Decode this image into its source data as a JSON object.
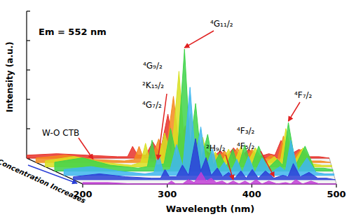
{
  "chart_data": {
    "type": "area",
    "title": "Em = 552 nm",
    "x_label": "Wavelength (nm)",
    "y_label": "Intensity (a.u.)",
    "depth_label": "Concentration Increases",
    "x": [
      200,
      230,
      260,
      290,
      300,
      305,
      310,
      318,
      325,
      332,
      340,
      346,
      352,
      358,
      365,
      371,
      378,
      385,
      392,
      398,
      405,
      412,
      420,
      430,
      440,
      446,
      452,
      460,
      470,
      480,
      490,
      500
    ],
    "series": [
      {
        "color": "#e8322a",
        "values": [
          2,
          3,
          2,
          1,
          1,
          8,
          2,
          2,
          11,
          3,
          30,
          6,
          17,
          3,
          9,
          2,
          5,
          1,
          5,
          1,
          7,
          1,
          6,
          1,
          3,
          2,
          12,
          2,
          6,
          1,
          1,
          0
        ]
      },
      {
        "color": "#f58a1f",
        "values": [
          3,
          5,
          2,
          1,
          2,
          11,
          2,
          3,
          16,
          5,
          45,
          9,
          25,
          5,
          14,
          2,
          7,
          2,
          8,
          2,
          10,
          2,
          9,
          1,
          5,
          2,
          18,
          2,
          9,
          1,
          1,
          0
        ]
      },
      {
        "color": "#d8e021",
        "values": [
          4,
          7,
          3,
          1,
          3,
          16,
          3,
          4,
          23,
          7,
          65,
          13,
          36,
          7,
          20,
          3,
          10,
          3,
          12,
          3,
          14,
          3,
          13,
          2,
          7,
          3,
          26,
          3,
          13,
          2,
          1,
          1
        ]
      },
      {
        "color": "#3fd44a",
        "values": [
          6,
          9,
          4,
          2,
          3,
          21,
          4,
          5,
          29,
          8,
          83,
          17,
          46,
          8,
          25,
          4,
          12,
          3,
          15,
          3,
          18,
          3,
          17,
          2,
          8,
          4,
          33,
          4,
          17,
          2,
          2,
          1
        ]
      },
      {
        "color": "#3fb7f0",
        "values": [
          4,
          6,
          3,
          1,
          2,
          15,
          3,
          4,
          21,
          6,
          60,
          12,
          33,
          6,
          18,
          3,
          9,
          2,
          11,
          2,
          13,
          2,
          12,
          2,
          6,
          3,
          24,
          3,
          12,
          2,
          1,
          1
        ]
      },
      {
        "color": "#2a3fd6",
        "values": [
          2,
          4,
          2,
          1,
          1,
          7,
          2,
          2,
          10,
          3,
          28,
          6,
          15,
          3,
          8,
          2,
          5,
          1,
          6,
          1,
          7,
          1,
          6,
          1,
          3,
          2,
          11,
          2,
          5,
          1,
          1,
          0
        ]
      },
      {
        "color": "#c23fd6",
        "values": [
          1,
          1,
          0,
          0,
          0,
          2,
          0,
          0,
          3,
          1,
          8,
          2,
          4,
          1,
          2,
          0,
          2,
          0,
          2,
          0,
          3,
          0,
          2,
          0,
          1,
          0,
          3,
          0,
          2,
          0,
          0,
          0
        ]
      }
    ],
    "xlim": [
      200,
      500
    ],
    "ylim": [
      0,
      100
    ],
    "xticks": [
      200,
      300,
      400,
      500
    ],
    "yticks": [
      0,
      20,
      40,
      60,
      80,
      100
    ],
    "tick_labels": "x",
    "annotations": [
      {
        "text": "⁴G₁₁/₂",
        "x": 340
      },
      {
        "text": "⁴G₉/₂"
      },
      {
        "text": "²K₁₅/₂",
        "x": 318
      },
      {
        "text": "⁴G₇/₂"
      },
      {
        "text": "W-O CTB",
        "x": 250
      },
      {
        "text": "²H₉/₂",
        "x": 378
      },
      {
        "text": "⁴F₃/₂"
      },
      {
        "text": "⁴F₅/₂",
        "x": 430
      },
      {
        "text": "⁴F₇/₂",
        "x": 452
      }
    ]
  }
}
